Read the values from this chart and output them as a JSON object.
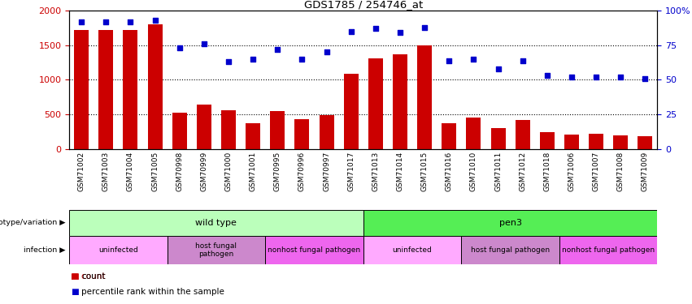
{
  "title": "GDS1785 / 254746_at",
  "samples": [
    "GSM71002",
    "GSM71003",
    "GSM71004",
    "GSM71005",
    "GSM70998",
    "GSM70999",
    "GSM71000",
    "GSM71001",
    "GSM70995",
    "GSM70996",
    "GSM70997",
    "GSM71017",
    "GSM71013",
    "GSM71014",
    "GSM71015",
    "GSM71016",
    "GSM71010",
    "GSM71011",
    "GSM71012",
    "GSM71018",
    "GSM71006",
    "GSM71007",
    "GSM71008",
    "GSM71009"
  ],
  "counts": [
    1720,
    1720,
    1720,
    1800,
    530,
    640,
    560,
    370,
    550,
    430,
    490,
    1090,
    1310,
    1370,
    1500,
    370,
    460,
    305,
    415,
    245,
    210,
    215,
    200,
    185
  ],
  "percentiles": [
    92,
    92,
    92,
    93,
    73,
    76,
    63,
    65,
    72,
    65,
    70,
    85,
    87,
    84,
    88,
    64,
    65,
    58,
    64,
    53,
    52,
    52,
    52,
    51
  ],
  "ylim_left": [
    0,
    2000
  ],
  "ylim_right": [
    0,
    100
  ],
  "yticks_left": [
    0,
    500,
    1000,
    1500,
    2000
  ],
  "yticks_right": [
    0,
    25,
    50,
    75,
    100
  ],
  "ytick_labels_right": [
    "0",
    "25",
    "50",
    "75",
    "100%"
  ],
  "bar_color": "#cc0000",
  "dot_color": "#0000cc",
  "genotype_row": [
    {
      "label": "wild type",
      "start": 0,
      "end": 12,
      "color": "#bbffbb"
    },
    {
      "label": "pen3",
      "start": 12,
      "end": 24,
      "color": "#55ee55"
    }
  ],
  "infection_row": [
    {
      "label": "uninfected",
      "start": 0,
      "end": 4,
      "color": "#ffaaff"
    },
    {
      "label": "host fungal\npathogen",
      "start": 4,
      "end": 8,
      "color": "#cc88cc"
    },
    {
      "label": "nonhost fungal pathogen",
      "start": 8,
      "end": 12,
      "color": "#ee66ee"
    },
    {
      "label": "uninfected",
      "start": 12,
      "end": 16,
      "color": "#ffaaff"
    },
    {
      "label": "host fungal pathogen",
      "start": 16,
      "end": 20,
      "color": "#cc88cc"
    },
    {
      "label": "nonhost fungal pathogen",
      "start": 20,
      "end": 24,
      "color": "#ee66ee"
    }
  ]
}
